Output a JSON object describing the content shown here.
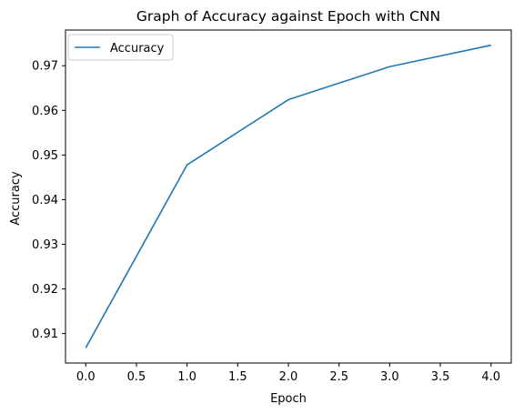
{
  "chart_data": {
    "type": "line",
    "title": "Graph of Accuracy against Epoch with CNN",
    "xlabel": "Epoch",
    "ylabel": "Accuracy",
    "x": [
      0,
      1,
      2,
      3,
      4
    ],
    "series": [
      {
        "name": "Accuracy",
        "values": [
          0.9068,
          0.9478,
          0.9624,
          0.9698,
          0.9746
        ],
        "color": "#1f77b4"
      }
    ],
    "xlim": [
      -0.2,
      4.2
    ],
    "ylim": [
      0.9034,
      0.978
    ],
    "xticks": [
      0.0,
      0.5,
      1.0,
      1.5,
      2.0,
      2.5,
      3.0,
      3.5,
      4.0
    ],
    "xtick_labels": [
      "0.0",
      "0.5",
      "1.0",
      "1.5",
      "2.0",
      "2.5",
      "3.0",
      "3.5",
      "4.0"
    ],
    "yticks": [
      0.91,
      0.92,
      0.93,
      0.94,
      0.95,
      0.96,
      0.97
    ],
    "ytick_labels": [
      "0.91",
      "0.92",
      "0.93",
      "0.94",
      "0.95",
      "0.96",
      "0.97"
    ],
    "grid": false,
    "legend_position": "upper-left"
  }
}
